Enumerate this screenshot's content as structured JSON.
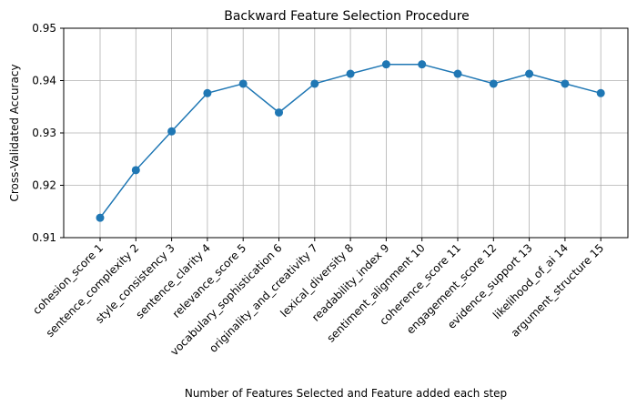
{
  "chart_data": {
    "type": "line",
    "title": "Backward Feature Selection Procedure",
    "xlabel": "Number of Features Selected and Feature added each step",
    "ylabel": "Cross-Validated Accuracy",
    "categories": [
      "cohesion_score 1",
      "sentence_complexity 2",
      "style_consistency 3",
      "sentence_clarity 4",
      "relevance_score 5",
      "vocabulary_sophistication 6",
      "originality_and_creativity 7",
      "lexical_diversity 8",
      "readability_index 9",
      "sentiment_alignment 10",
      "coherence_score 11",
      "engagement_score 12",
      "evidence_support 13",
      "likelihood_of_ai 14",
      "argument_structure 15"
    ],
    "values": [
      0.9138,
      0.9229,
      0.9303,
      0.9376,
      0.9394,
      0.9339,
      0.9394,
      0.9413,
      0.9431,
      0.9431,
      0.9413,
      0.9394,
      0.9413,
      0.9394,
      0.9376
    ],
    "ylim": [
      0.91,
      0.95
    ],
    "yticks": [
      "0.91",
      "0.92",
      "0.93",
      "0.94",
      "0.95"
    ],
    "grid": true,
    "line_color": "#1f77b4"
  }
}
